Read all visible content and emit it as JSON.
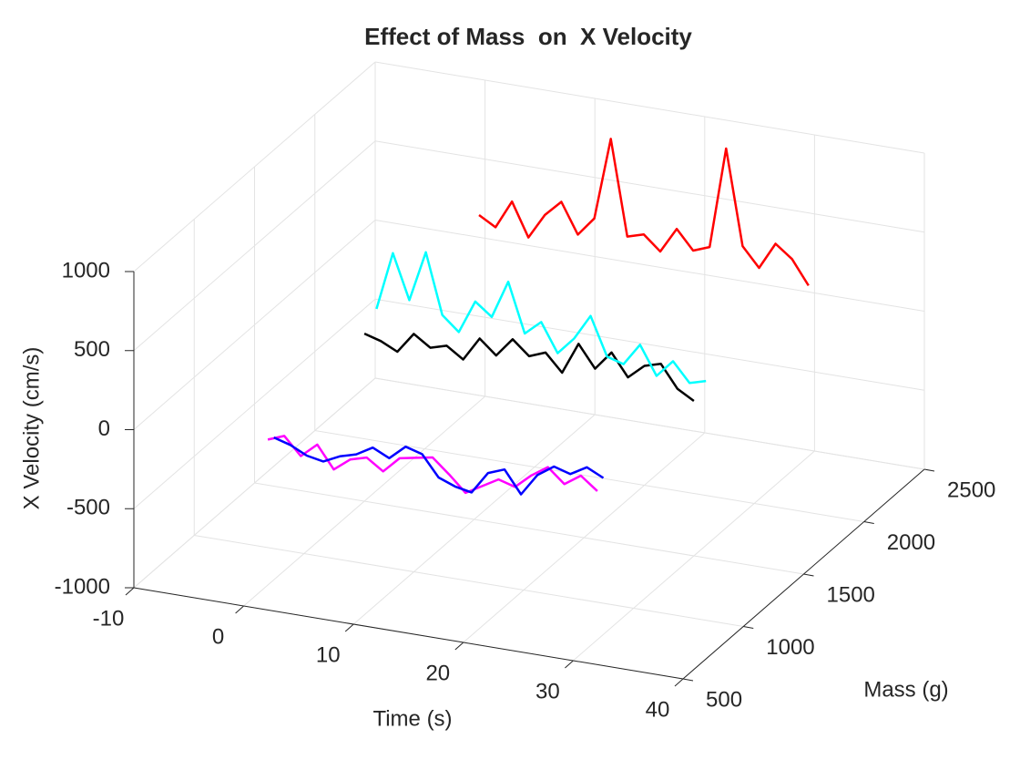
{
  "chart_data": {
    "type": "line3d",
    "title": "Effect of Mass  on  X Velocity",
    "xlabel": "Time (s)",
    "ylabel": "Mass (g)",
    "zlabel": "X Velocity (cm/s)",
    "xlim": [
      -10,
      40
    ],
    "ylim": [
      500,
      2500
    ],
    "zlim": [
      -1000,
      1000
    ],
    "xticks": [
      -10,
      0,
      10,
      20,
      30,
      40
    ],
    "yticks": [
      500,
      1000,
      1500,
      2000,
      2500
    ],
    "zticks": [
      -1000,
      -500,
      0,
      500,
      1000
    ],
    "grid": true,
    "x": [
      0,
      1.5,
      3,
      4.5,
      6,
      7.5,
      9,
      10.5,
      12,
      13.5,
      15,
      16.5,
      18,
      19.5,
      21,
      22.5,
      24,
      25.5,
      27,
      28.5,
      30
    ],
    "series": [
      {
        "color": "#ff00ff",
        "mass": 700,
        "values": [
          -80,
          -40,
          -150,
          -60,
          -200,
          -120,
          -90,
          -160,
          -60,
          -40,
          -20,
          -110,
          -210,
          -150,
          -90,
          -120,
          -30,
          40,
          -50,
          20,
          -60
        ]
      },
      {
        "color": "#0000ff",
        "mass": 750,
        "values": [
          -100,
          -130,
          -180,
          -200,
          -150,
          -120,
          -60,
          -110,
          -20,
          -50,
          -180,
          -220,
          -240,
          -100,
          -60,
          -200,
          -60,
          10,
          -20,
          40,
          -10
        ]
      },
      {
        "color": "#000000",
        "mass": 1500,
        "values": [
          60,
          30,
          -20,
          110,
          40,
          70,
          0,
          150,
          60,
          180,
          90,
          130,
          20,
          220,
          80,
          200,
          60,
          150,
          180,
          40,
          -20
        ]
      },
      {
        "color": "#00ffff",
        "mass": 1600,
        "values": [
          150,
          520,
          240,
          560,
          180,
          90,
          300,
          220,
          460,
          150,
          240,
          60,
          170,
          330,
          90,
          60,
          200,
          20,
          130,
          10,
          40
        ]
      },
      {
        "color": "#ff0000",
        "mass": 2450,
        "values": [
          180,
          120,
          300,
          90,
          250,
          350,
          160,
          280,
          800,
          200,
          230,
          140,
          300,
          180,
          220,
          860,
          260,
          140,
          310,
          230,
          80
        ]
      }
    ]
  }
}
